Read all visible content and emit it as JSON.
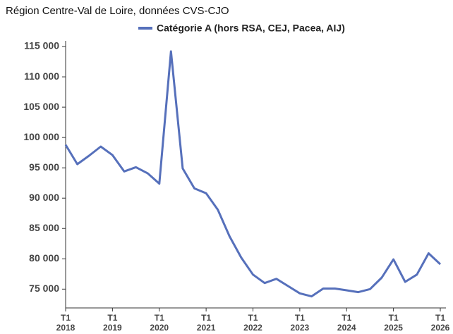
{
  "chart_data": {
    "type": "line",
    "title": "Région Centre-Val de Loire, données CVS-CJO",
    "categories": [
      "T1\n2018",
      null,
      null,
      null,
      "T1\n2019",
      null,
      null,
      null,
      "T1\n2020",
      null,
      null,
      null,
      "T1\n2021",
      null,
      null,
      null,
      "T1\n2022",
      null,
      null,
      null,
      "T1\n2023",
      null,
      null,
      null,
      "T1\n2024",
      null,
      null,
      null,
      "T1\n2025",
      null,
      null,
      null,
      "T1\n2026"
    ],
    "series": [
      {
        "name": "Catégorie A (hors RSA, CEJ, Pacea, AIJ)",
        "color": "#5670bb",
        "values": [
          98800,
          95600,
          97000,
          98500,
          97100,
          94400,
          95100,
          94100,
          92400,
          114200,
          94900,
          91600,
          90800,
          88100,
          83700,
          80200,
          77400,
          76000,
          76700,
          75500,
          74300,
          73800,
          75100,
          75100,
          74800,
          74500,
          75000,
          76900,
          79900,
          76200,
          77400,
          80900,
          79100
        ]
      }
    ],
    "ylim": [
      71900,
      115700
    ],
    "yticks": [
      {
        "value": 75000,
        "label": "75 000"
      },
      {
        "value": 80000,
        "label": "80 000"
      },
      {
        "value": 85000,
        "label": "85 000"
      },
      {
        "value": 90000,
        "label": "90 000"
      },
      {
        "value": 95000,
        "label": "95 000"
      },
      {
        "value": 100000,
        "label": "100 000"
      },
      {
        "value": 105000,
        "label": "105 000"
      },
      {
        "value": 110000,
        "label": "110 000"
      },
      {
        "value": 115000,
        "label": "115 000"
      }
    ],
    "legend": "top"
  }
}
